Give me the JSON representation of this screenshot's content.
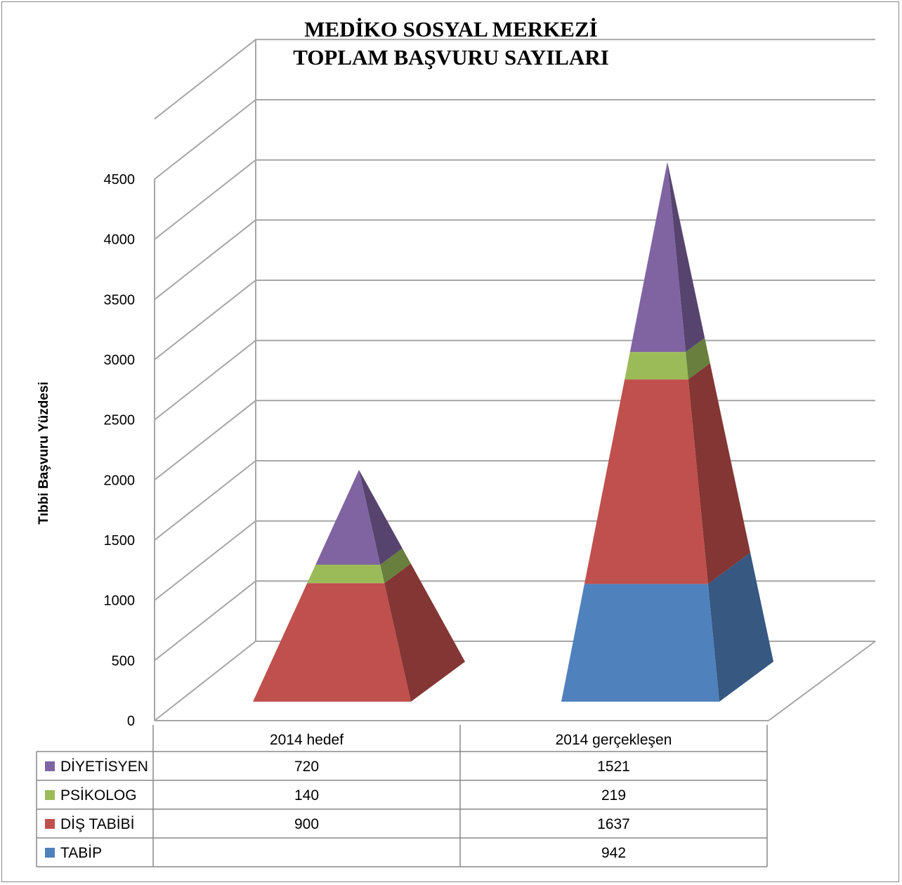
{
  "chart_data": {
    "type": "bar",
    "style": "3d-stacked-pyramid",
    "title": [
      "MEDİKO SOSYAL MERKEZİ",
      "TOPLAM BAŞVURU SAYILARI"
    ],
    "ylabel": "Tıbbi Başvuru Yüzdesi",
    "xlabel": "",
    "ylim": [
      0,
      5000
    ],
    "yticks": [
      0,
      500,
      1000,
      1500,
      2000,
      2500,
      3000,
      3500,
      4000,
      4500
    ],
    "grid": true,
    "legend": "data-table-below",
    "categories": [
      "2014 hedef",
      "2014 gerçekleşen"
    ],
    "series": [
      {
        "name": "TABİP",
        "values": [
          null,
          942
        ],
        "color": "#4F81BD"
      },
      {
        "name": "DİŞ TABİBİ",
        "values": [
          900,
          1637
        ],
        "color": "#C0504D"
      },
      {
        "name": "PSİKOLOG",
        "values": [
          140,
          219
        ],
        "color": "#9BBB59"
      },
      {
        "name": "DİYETİSYEN",
        "values": [
          720,
          1521
        ],
        "color": "#8064A2"
      }
    ],
    "table_rows": [
      {
        "name": "DİYETİSYEN",
        "cells": [
          "720",
          "1521"
        ],
        "color": "#8064A2"
      },
      {
        "name": "PSİKOLOG",
        "cells": [
          "140",
          "219"
        ],
        "color": "#9BBB59"
      },
      {
        "name": "DİŞ TABİBİ",
        "cells": [
          "900",
          "1637"
        ],
        "color": "#C0504D"
      },
      {
        "name": "TABİP",
        "cells": [
          "",
          "942"
        ],
        "color": "#4F81BD"
      }
    ]
  }
}
